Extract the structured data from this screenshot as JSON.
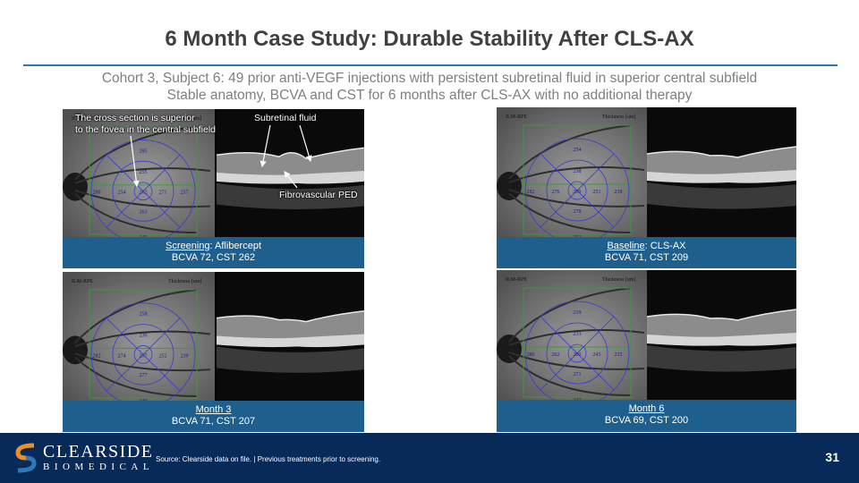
{
  "slide": {
    "title": "6 Month Case Study: Durable Stability After CLS-AX",
    "subtitle_line1": "Cohort 3, Subject 6: 49 prior anti-VEGF injections with persistent subretinal fluid in superior central subfield",
    "subtitle_line2": "Stable anatomy, BCVA and CST for 6 months after CLS-AX with no additional therapy"
  },
  "annotations": {
    "cross_section_line1": "The cross section is superior",
    "cross_section_line2": "to the fovea in the central subfield",
    "subretinal_fluid": "Subretinal fluid",
    "fibrovascular_ped": "Fibrovascular PED"
  },
  "panels": [
    {
      "visit": "Screening",
      "treatment": ": Aflibercept",
      "stats": "BCVA 72, CST 262",
      "grid_header_left": "ILM-RPE",
      "grid_header_right": "Thickness [um]",
      "grid_values": [
        "285",
        "255",
        "262",
        "271",
        "257",
        "280",
        "254",
        "263",
        "245"
      ]
    },
    {
      "visit": "Baseline",
      "treatment": ": CLS-AX",
      "stats": "BCVA 71, CST 209",
      "grid_header_left": "ILM-RPE",
      "grid_header_right": "Thickness [um]",
      "grid_values": [
        "254",
        "238",
        "209",
        "251",
        "238",
        "282",
        "276",
        "278",
        "252"
      ]
    },
    {
      "visit": "Month 3",
      "treatment": "",
      "stats": "BCVA 71, CST 207",
      "grid_header_left": "ILM-RPE",
      "grid_header_right": "Thickness [um]",
      "grid_values": [
        "258",
        "236",
        "207",
        "252",
        "239",
        "282",
        "274",
        "277",
        "249"
      ]
    },
    {
      "visit": "Month 6",
      "treatment": "",
      "stats": "BCVA 69, CST 200",
      "grid_header_left": "ILM-RPE",
      "grid_header_right": "Thickness [um]",
      "grid_values": [
        "219",
        "233",
        "200",
        "245",
        "235",
        "280",
        "262",
        "271",
        "247"
      ]
    }
  ],
  "footer": {
    "logo_main": "CLEARSIDE",
    "logo_sub": "BIOMEDICAL",
    "source": "Source: Clearside data on file. | Previous treatments prior to screening.",
    "page_number": "31"
  },
  "colors": {
    "accent_blue": "#2e78b8",
    "caption_blue": "#1e5f8e",
    "footer_navy": "#072a59",
    "logo_orange": "#e8902a"
  }
}
